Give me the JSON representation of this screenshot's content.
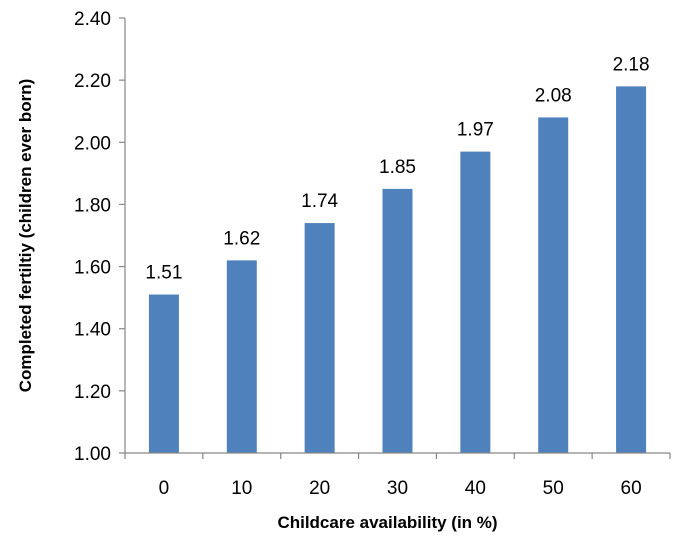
{
  "chart_data": {
    "type": "bar",
    "title": "",
    "xlabel": "Childcare availability (in %)",
    "ylabel": "Completed fertiltiy (children ever born)",
    "categories": [
      "0",
      "10",
      "20",
      "30",
      "40",
      "50",
      "60"
    ],
    "values": [
      1.51,
      1.62,
      1.74,
      1.85,
      1.97,
      2.08,
      2.18
    ],
    "data_labels": [
      "1.51",
      "1.62",
      "1.74",
      "1.85",
      "1.97",
      "2.08",
      "2.18"
    ],
    "ylim": [
      1.0,
      2.4
    ],
    "y_ticks": [
      "1.00",
      "1.20",
      "1.40",
      "1.60",
      "1.80",
      "2.00",
      "2.20",
      "2.40"
    ],
    "y_tick_values": [
      1.0,
      1.2,
      1.4,
      1.6,
      1.8,
      2.0,
      2.2,
      2.4
    ],
    "grid": false,
    "legend": "none",
    "bar_color": "#4f81bd"
  }
}
